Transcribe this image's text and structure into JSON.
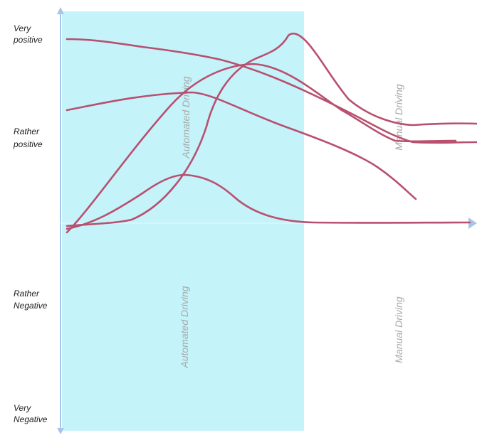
{
  "y_labels": {
    "very_positive": [
      "Very",
      "positive"
    ],
    "rather_positive": [
      "Rather",
      "positive"
    ],
    "rather_negative": [
      "Rather",
      "Negative"
    ],
    "very_negative": [
      "Very",
      "Negative"
    ]
  },
  "phases": {
    "automated": "Automated Driving",
    "manual": "Manual Driving"
  },
  "colors": {
    "automated_region": "#c4f3fa",
    "axis": "#a8c4e6",
    "curve": "#b8506f",
    "phase_label": "#a9a9a9",
    "y_label": "#1e1e1e"
  },
  "curve_count": 5
}
